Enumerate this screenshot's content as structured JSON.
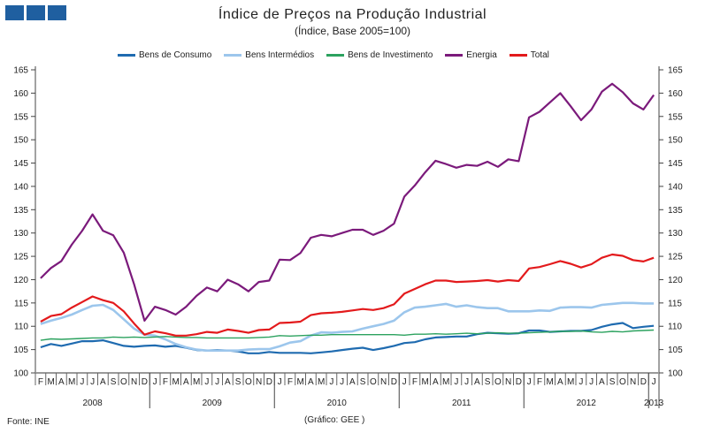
{
  "header": {
    "logo_colors": [
      "#1f5fa0",
      "#1f5fa0",
      "#1f5fa0"
    ]
  },
  "chart_data": {
    "type": "line",
    "title": "Índice de Preços na Produção Industrial",
    "subtitle": "(Índice, Base 2005=100)",
    "ylim": [
      100,
      165
    ],
    "yticks": [
      100,
      105,
      110,
      115,
      120,
      125,
      130,
      135,
      140,
      145,
      150,
      155,
      160,
      165
    ],
    "grid": false,
    "legend": "top",
    "month_labels": [
      "F",
      "M",
      "A",
      "M",
      "J",
      "J",
      "A",
      "S",
      "O",
      "N",
      "D",
      "J",
      "F",
      "M",
      "A",
      "M",
      "J",
      "J",
      "A",
      "S",
      "O",
      "N",
      "D",
      "J",
      "F",
      "M",
      "A",
      "M",
      "J",
      "J",
      "A",
      "S",
      "O",
      "N",
      "D",
      "J",
      "F",
      "M",
      "A",
      "M",
      "J",
      "J",
      "A",
      "S",
      "O",
      "N",
      "D",
      "J",
      "F",
      "M",
      "A",
      "M",
      "J",
      "J",
      "A",
      "S",
      "O",
      "N",
      "D",
      "J"
    ],
    "years": [
      {
        "label": "2008",
        "months": 11
      },
      {
        "label": "2009",
        "months": 12
      },
      {
        "label": "2010",
        "months": 12
      },
      {
        "label": "2011",
        "months": 12
      },
      {
        "label": "2012",
        "months": 12
      },
      {
        "label": "2013",
        "months": 1
      }
    ],
    "series": [
      {
        "name": "Bens de Consumo",
        "color": "#1f6bb0",
        "width": 2.2,
        "values": [
          105.5,
          106.2,
          105.8,
          106.3,
          106.8,
          106.8,
          107,
          106.4,
          105.8,
          105.6,
          105.8,
          105.9,
          105.6,
          105.8,
          105.4,
          104.9,
          104.8,
          104.9,
          104.8,
          104.6,
          104.2,
          104.2,
          104.5,
          104.3,
          104.3,
          104.3,
          104.2,
          104.4,
          104.6,
          104.9,
          105.2,
          105.4,
          104.9,
          105.3,
          105.8,
          106.4,
          106.6,
          107.2,
          107.6,
          107.7,
          107.8,
          107.8,
          108.3,
          108.6,
          108.5,
          108.4,
          108.5,
          109.1,
          109.1,
          108.8,
          108.9,
          109,
          109,
          109.2,
          109.9,
          110.4,
          110.7,
          109.6,
          109.9,
          110.1
        ]
      },
      {
        "name": "Bens Intermédios",
        "color": "#9cc6ec",
        "width": 2.6,
        "values": [
          110.5,
          111.2,
          111.8,
          112.5,
          113.5,
          114.4,
          114.6,
          113.5,
          111.5,
          109.5,
          108.2,
          108,
          107.2,
          106.2,
          105.5,
          105,
          104.8,
          104.8,
          104.8,
          104.8,
          105,
          105.1,
          105.1,
          105.7,
          106.5,
          106.8,
          108,
          108.7,
          108.6,
          108.8,
          108.9,
          109.5,
          110,
          110.5,
          111.2,
          113,
          114,
          114.2,
          114.5,
          114.8,
          114.2,
          114.5,
          114.1,
          113.9,
          113.9,
          113.2,
          113.2,
          113.2,
          113.4,
          113.3,
          114,
          114.1,
          114.1,
          114,
          114.6,
          114.8,
          115,
          115,
          114.9,
          114.9
        ]
      },
      {
        "name": "Bens de Investimento",
        "color": "#2ca25f",
        "width": 1.4,
        "values": [
          107,
          107.3,
          107.2,
          107.3,
          107.4,
          107.5,
          107.5,
          107.7,
          107.6,
          107.7,
          107.6,
          107.7,
          107.8,
          107.7,
          107.6,
          107.6,
          107.5,
          107.5,
          107.5,
          107.5,
          107.5,
          107.6,
          107.7,
          108,
          107.9,
          108,
          108.1,
          108.1,
          108.2,
          108.2,
          108.2,
          108.2,
          108.2,
          108.2,
          108.2,
          108.1,
          108.3,
          108.3,
          108.4,
          108.3,
          108.4,
          108.5,
          108.4,
          108.5,
          108.6,
          108.5,
          108.5,
          108.6,
          108.7,
          108.8,
          108.9,
          108.9,
          109,
          108.8,
          108.7,
          108.9,
          108.8,
          109,
          109.1,
          109.2
        ]
      },
      {
        "name": "Energia",
        "color": "#7b1a7b",
        "width": 2.2,
        "values": [
          120.3,
          122.5,
          124,
          127.5,
          130.5,
          134,
          130.5,
          129.5,
          125.8,
          119,
          111.2,
          114.2,
          113.5,
          112.5,
          114.2,
          116.5,
          118.3,
          117.5,
          120,
          119,
          117.5,
          119.5,
          119.8,
          124.3,
          124.2,
          125.7,
          129,
          129.6,
          129.3,
          130,
          130.7,
          130.7,
          129.6,
          130.5,
          132,
          137.8,
          140.2,
          143,
          145.5,
          144.8,
          144,
          144.6,
          144.4,
          145.3,
          144.2,
          145.8,
          145.4,
          154.8,
          156,
          158,
          160,
          157.2,
          154.2,
          156.5,
          160.3,
          162,
          160.2,
          157.8,
          156.5,
          159.6
        ]
      },
      {
        "name": "Total",
        "color": "#e31a1c",
        "width": 2.2,
        "values": [
          111,
          112.2,
          112.6,
          114,
          115.2,
          116.4,
          115.6,
          115,
          113.2,
          110.6,
          108.2,
          108.9,
          108.5,
          108,
          108,
          108.3,
          108.8,
          108.6,
          109.3,
          109,
          108.6,
          109.2,
          109.3,
          110.7,
          110.8,
          111,
          112.4,
          112.8,
          112.9,
          113.1,
          113.4,
          113.7,
          113.5,
          113.9,
          114.7,
          117,
          118,
          119,
          119.8,
          119.8,
          119.5,
          119.6,
          119.7,
          119.9,
          119.6,
          119.9,
          119.7,
          122.4,
          122.7,
          123.3,
          124,
          123.4,
          122.6,
          123.3,
          124.7,
          125.4,
          125.1,
          124.2,
          123.9,
          124.7
        ]
      }
    ]
  },
  "footer": {
    "source": "Fonte: INE",
    "credit": "(Gráfico:  GEE )"
  }
}
